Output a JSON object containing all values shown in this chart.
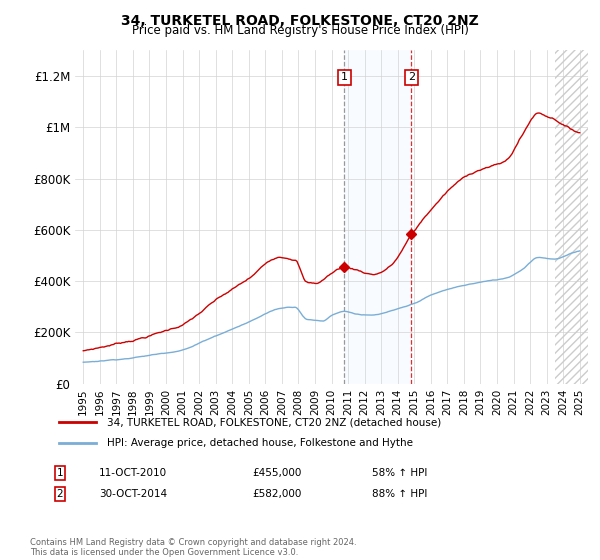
{
  "title": "34, TURKETEL ROAD, FOLKESTONE, CT20 2NZ",
  "subtitle": "Price paid vs. HM Land Registry's House Price Index (HPI)",
  "legend_house": "34, TURKETEL ROAD, FOLKESTONE, CT20 2NZ (detached house)",
  "legend_hpi": "HPI: Average price, detached house, Folkestone and Hythe",
  "sale1_label": "1",
  "sale1_date": "11-OCT-2010",
  "sale1_price": "£455,000",
  "sale1_pct": "58% ↑ HPI",
  "sale1_year": 2010.78,
  "sale1_value": 455000,
  "sale2_label": "2",
  "sale2_date": "30-OCT-2014",
  "sale2_price": "£582,000",
  "sale2_pct": "88% ↑ HPI",
  "sale2_year": 2014.83,
  "sale2_value": 582000,
  "house_color": "#cc0000",
  "hpi_color": "#7aaed6",
  "shade_color": "#ddeeff",
  "footnote": "Contains HM Land Registry data © Crown copyright and database right 2024.\nThis data is licensed under the Open Government Licence v3.0.",
  "ylim": [
    0,
    1300000
  ],
  "yticks": [
    0,
    200000,
    400000,
    600000,
    800000,
    1000000,
    1200000
  ],
  "ytick_labels": [
    "£0",
    "£200K",
    "£400K",
    "£600K",
    "£800K",
    "£1M",
    "£1.2M"
  ],
  "xstart": 1995,
  "xend": 2025
}
